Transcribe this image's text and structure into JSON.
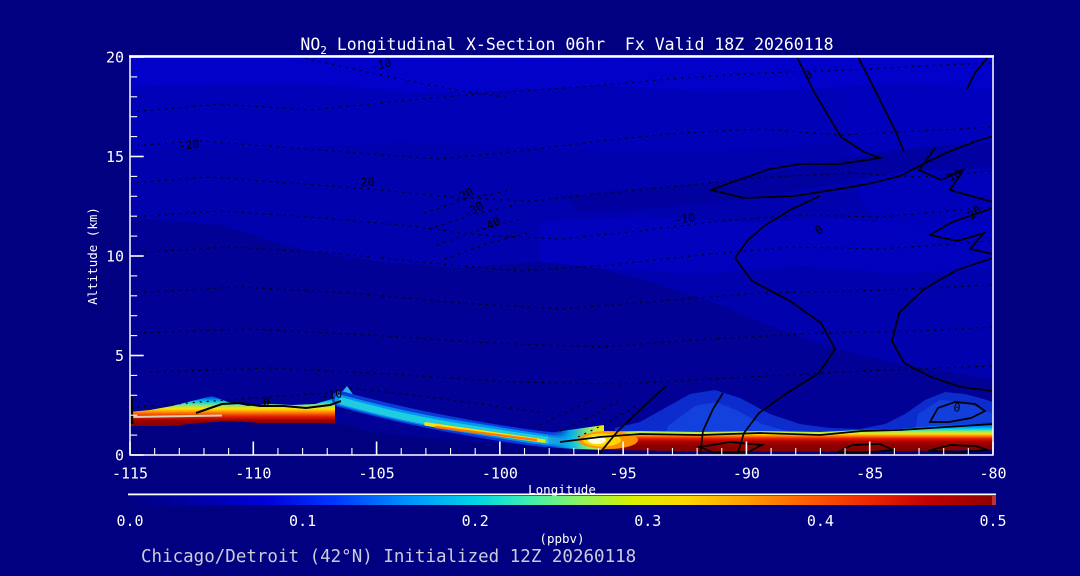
{
  "title": {
    "part1": "NO",
    "sub": "2",
    "part2": " Longitudinal X-Section 06hr  Fx Valid 18Z 20260118"
  },
  "caption": "Chicago/Detroit (42°N) Initialized 12Z 20260118",
  "axes": {
    "y": {
      "label": "Altitude (km)",
      "ticks": [
        "20",
        "15",
        "10",
        "5",
        "0"
      ]
    },
    "x": {
      "label": "Longitude",
      "ticks": [
        "-115",
        "-110",
        "-105",
        "-100",
        "-95",
        "-90",
        "-85",
        "-80"
      ]
    }
  },
  "colorbar": {
    "units": "(ppbv)",
    "ticks": [
      "0.0",
      "0.1",
      "0.2",
      "0.3",
      "0.4",
      "0.5"
    ]
  },
  "contour_labels": [
    {
      "text": "-10"
    },
    {
      "text": "-20"
    },
    {
      "text": "-20"
    },
    {
      "text": "-20"
    },
    {
      "text": "-30"
    },
    {
      "text": "-40"
    },
    {
      "text": "-10"
    },
    {
      "text": "-10"
    },
    {
      "text": "0"
    },
    {
      "text": "0"
    },
    {
      "text": "10"
    },
    {
      "text": "20"
    },
    {
      "text": "0"
    },
    {
      "text": "0"
    }
  ],
  "colors": {
    "page_background": "#000080",
    "plot_background_blue": "#0101AE",
    "plume_dark_red": "#8B0000",
    "plume_yellow": "#FFE400",
    "plume_cyan": "#00CCE8",
    "axis_white": "#FFFFFF",
    "contour_black": "#000000",
    "caption_gray": "#CCCCDC"
  },
  "chart_data": {
    "type": "heatmap",
    "title": "NO2 Longitudinal X-Section 06hr Fx Valid 18Z 20260118",
    "xlabel": "Longitude",
    "ylabel": "Altitude (km)",
    "xlim": [
      -115,
      -80
    ],
    "ylim": [
      0,
      20
    ],
    "grid": false,
    "colorbar": {
      "label": "(ppbv)",
      "min": 0.0,
      "max": 0.5,
      "ticks": [
        0.0,
        0.1,
        0.2,
        0.3,
        0.4,
        0.5
      ],
      "palette": "navy-blue-cyan-green-yellow-orange-red-darkred rainbow"
    },
    "series_note": "Filled contours: NO2 mixing ratio (ppbv) along 42N cross-section. Overlaid line contours: dashed negative values (-10,-20,-30,-40), solid non-negative values (0,10,20).",
    "background_ppbv_range": [
      0.0,
      0.05
    ],
    "surface_plume": {
      "longitude": [
        -115,
        -113,
        -111,
        -109,
        -107,
        -106,
        -105,
        -103,
        -101,
        -99,
        -97,
        -95.6,
        -94,
        -92,
        -90,
        -88,
        -86,
        -84,
        -82,
        -80
      ],
      "peak_ppbv": [
        0.5,
        0.5,
        0.5,
        0.5,
        0.45,
        0.32,
        0.3,
        0.32,
        0.3,
        0.22,
        0.3,
        0.45,
        0.5,
        0.5,
        0.5,
        0.5,
        0.5,
        0.5,
        0.5,
        0.5
      ],
      "plume_top_km": [
        2.2,
        2.2,
        2.6,
        2.3,
        2.4,
        2.8,
        2.3,
        1.8,
        1.3,
        0.9,
        0.7,
        1.0,
        0.9,
        0.9,
        0.9,
        0.9,
        0.9,
        1.0,
        1.2,
        1.6
      ]
    },
    "terrain_height_km": {
      "longitude": [
        -115,
        -110,
        -105,
        -100,
        -95,
        -90,
        -85,
        -80
      ],
      "height": [
        1.45,
        1.65,
        1.3,
        0.75,
        0.25,
        0.2,
        0.2,
        0.25
      ]
    },
    "overlay_contour_labels": [
      -10,
      -20,
      -30,
      -40,
      0,
      10,
      20
    ]
  }
}
